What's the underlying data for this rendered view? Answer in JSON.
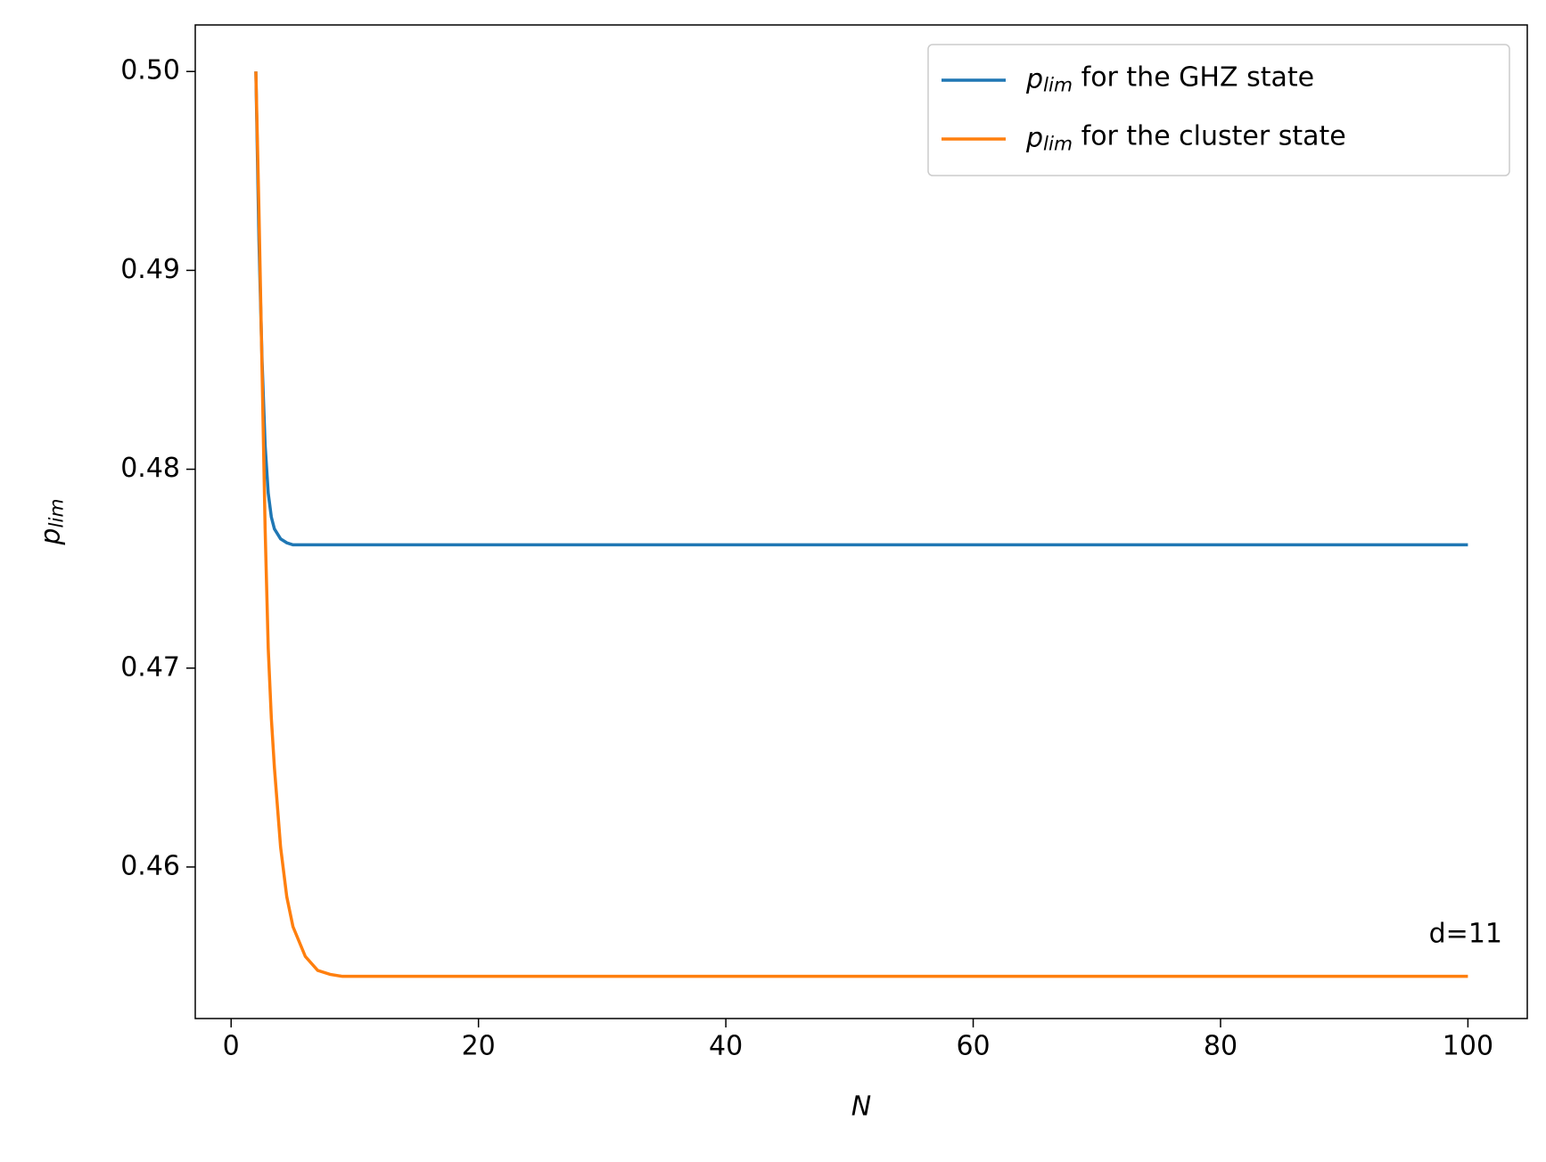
{
  "chart_data": {
    "type": "line",
    "xlabel": "N",
    "ylabel": "p_lim",
    "annotation": "d=11",
    "x": [
      2,
      2.25,
      2.5,
      2.75,
      3,
      3.25,
      3.5,
      4,
      4.5,
      5,
      6,
      7,
      8,
      9,
      10,
      20,
      40,
      60,
      80,
      100
    ],
    "series": [
      {
        "name": "p_lim for the GHZ state",
        "color": "#1f77b4",
        "values": [
          0.5,
          0.4915,
          0.4855,
          0.4812,
          0.4788,
          0.4776,
          0.477,
          0.4765,
          0.4763,
          0.4762,
          0.4762,
          0.4762,
          0.4762,
          0.4762,
          0.4762,
          0.4762,
          0.4762,
          0.4762,
          0.4762,
          0.4762
        ]
      },
      {
        "name": "p_lim for the cluster state",
        "color": "#ff7f0e",
        "values": [
          0.5,
          0.493,
          0.485,
          0.477,
          0.471,
          0.4675,
          0.465,
          0.461,
          0.4585,
          0.457,
          0.4555,
          0.4548,
          0.4546,
          0.4545,
          0.4545,
          0.4545,
          0.4545,
          0.4545,
          0.4545,
          0.4545
        ]
      }
    ],
    "xlim": [
      -2.9,
      104.8
    ],
    "ylim": [
      0.45238,
      0.50234
    ],
    "xticks": [
      0,
      20,
      40,
      60,
      80,
      100
    ],
    "yticks": [
      0.46,
      0.47,
      0.48,
      0.49,
      {
        "value": 0.5,
        "label": "0.50"
      }
    ],
    "legend": "upper right"
  }
}
